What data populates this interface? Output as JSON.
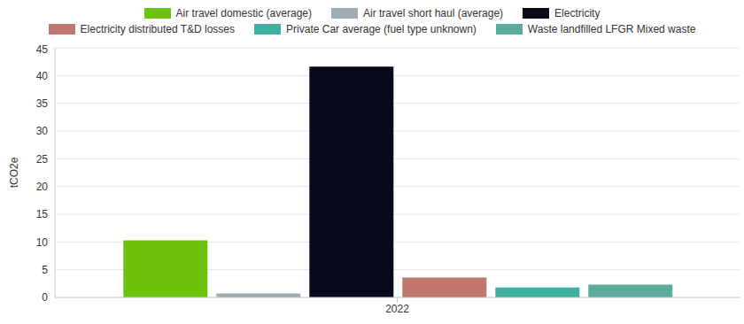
{
  "chart_data": {
    "type": "bar",
    "categories": [
      "2022"
    ],
    "y_label": "tCO2e",
    "ylim": [
      0,
      45
    ],
    "yticks": [
      0,
      5,
      10,
      15,
      20,
      25,
      30,
      35,
      40,
      45
    ],
    "grid": true,
    "legend": "top",
    "series": [
      {
        "name": "Air travel domestic (average)",
        "color": "#6cc10a",
        "values": [
          10.3
        ]
      },
      {
        "name": "Air travel short haul (average)",
        "color": "#9eaeb7",
        "values": [
          0.7
        ]
      },
      {
        "name": "Electricity",
        "color": "#080a1c",
        "values": [
          41.6
        ]
      },
      {
        "name": "Electricity distributed T&D losses",
        "color": "#c0776e",
        "values": [
          3.6
        ]
      },
      {
        "name": "Private Car average (fuel type unknown)",
        "color": "#3fb0a0",
        "values": [
          1.8
        ]
      },
      {
        "name": "Waste landfilled LFGR Mixed waste",
        "color": "#5aab98",
        "values": [
          2.3
        ]
      }
    ]
  }
}
